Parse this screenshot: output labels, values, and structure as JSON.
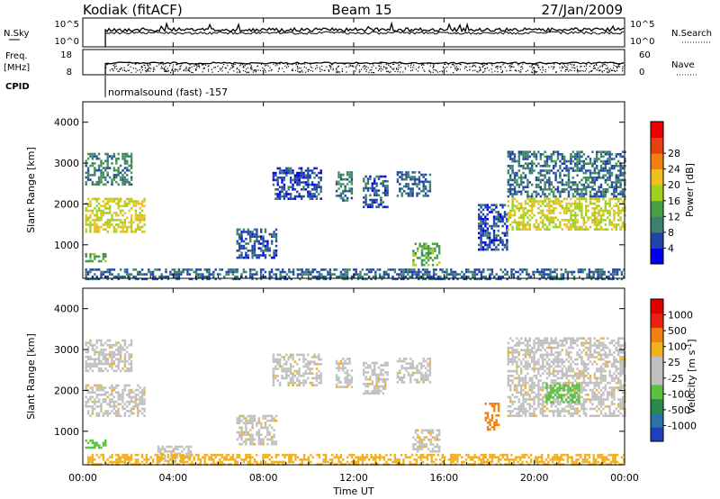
{
  "header": {
    "station": "Kodiak (fitACF)",
    "beam": "Beam 15",
    "date": "27/Jan/2009"
  },
  "nsky_panel": {
    "label_top": "N.Sky",
    "ticks": [
      "10^5",
      "10^0"
    ],
    "right_label": "N.Search",
    "right_ticks": [
      "10^5",
      "10^0"
    ]
  },
  "freq_panel": {
    "label_line1": "Freq.",
    "label_line2": "[MHz]",
    "ticks": [
      "18",
      "8"
    ],
    "right_label": "Nave",
    "right_ticks": [
      "60",
      "0"
    ]
  },
  "cpid": {
    "label": "CPID",
    "text": "normalsound (fast) -157"
  },
  "x_axis": {
    "label": "Time UT",
    "ticks": [
      "00:00",
      "04:00",
      "08:00",
      "12:00",
      "16:00",
      "20:00",
      "00:00"
    ]
  },
  "power_panel": {
    "ylabel": "Slant Range [km]",
    "yticks": [
      "1000",
      "2000",
      "3000",
      "4000"
    ],
    "colorbar_label": "Power [dB]",
    "colorbar_ticks": [
      "4",
      "8",
      "12",
      "16",
      "20",
      "24",
      "28"
    ],
    "colors": [
      "#0000ee",
      "#2244aa",
      "#3f7f6e",
      "#46a046",
      "#a0d020",
      "#f0c020",
      "#f08010",
      "#e84010",
      "#ee0000"
    ]
  },
  "velocity_panel": {
    "ylabel": "Slant Range [km]",
    "yticks": [
      "1000",
      "2000",
      "3000",
      "4000"
    ],
    "colorbar_label": "Velocity [m s",
    "colorbar_label_sup": "-1",
    "colorbar_label_end": "]",
    "colorbar_ticks": [
      "1000",
      "500",
      "100",
      "25",
      "-25",
      "-100",
      "-500",
      "-1000"
    ],
    "colors": [
      "#1f3fc0",
      "#2a73a8",
      "#2a8a4a",
      "#5cc040",
      "#c0c0c0",
      "#c0c0c0",
      "#f0b020",
      "#f08010",
      "#ee2010",
      "#e00000"
    ]
  },
  "chart_data": {
    "type": "heatmap",
    "x_range_hours": [
      0,
      24
    ],
    "y_range_km": [
      180,
      4500
    ],
    "power_regions": [
      {
        "t0": 0.1,
        "t1": 2.2,
        "r0": 2500,
        "r1": 3250,
        "p": 10
      },
      {
        "t0": 0.1,
        "t1": 2.7,
        "r0": 1300,
        "r1": 2150,
        "p": 20
      },
      {
        "t0": 0.1,
        "t1": 1.0,
        "r0": 600,
        "r1": 800,
        "p": 14
      },
      {
        "t0": 6.8,
        "t1": 8.6,
        "r0": 700,
        "r1": 1400,
        "p": 7
      },
      {
        "t0": 8.4,
        "t1": 10.6,
        "r0": 2100,
        "r1": 2900,
        "p": 6
      },
      {
        "t0": 11.2,
        "t1": 11.9,
        "r0": 2100,
        "r1": 2800,
        "p": 10
      },
      {
        "t0": 12.4,
        "t1": 13.5,
        "r0": 1950,
        "r1": 2700,
        "p": 7
      },
      {
        "t0": 13.9,
        "t1": 15.4,
        "r0": 2200,
        "r1": 2800,
        "p": 8
      },
      {
        "t0": 14.6,
        "t1": 15.8,
        "r0": 500,
        "r1": 1050,
        "p": 14
      },
      {
        "t0": 17.5,
        "t1": 18.8,
        "r0": 900,
        "r1": 2000,
        "p": 6
      },
      {
        "t0": 18.8,
        "t1": 24.0,
        "r0": 1350,
        "r1": 2150,
        "p": 20
      },
      {
        "t0": 18.8,
        "t1": 24.0,
        "r0": 2200,
        "r1": 3300,
        "p": 9
      },
      {
        "t0": 0.1,
        "t1": 24.0,
        "r0": 180,
        "r1": 420,
        "p": 8
      }
    ],
    "velocity_regions": [
      {
        "t0": 0.1,
        "t1": 2.2,
        "r0": 2500,
        "r1": 3250,
        "v": 0
      },
      {
        "t0": 0.1,
        "t1": 2.7,
        "r0": 1350,
        "r1": 2150,
        "v": 0
      },
      {
        "t0": 0.1,
        "t1": 1.0,
        "r0": 600,
        "r1": 800,
        "v": 150
      },
      {
        "t0": 3.3,
        "t1": 4.8,
        "r0": 300,
        "r1": 650,
        "v": 0
      },
      {
        "t0": 6.8,
        "t1": 8.6,
        "r0": 700,
        "r1": 1400,
        "v": 0
      },
      {
        "t0": 8.4,
        "t1": 10.6,
        "r0": 2100,
        "r1": 2900,
        "v": 0
      },
      {
        "t0": 11.2,
        "t1": 11.9,
        "r0": 2100,
        "r1": 2800,
        "v": 0
      },
      {
        "t0": 12.4,
        "t1": 13.5,
        "r0": 1950,
        "r1": 2700,
        "v": 0
      },
      {
        "t0": 13.9,
        "t1": 15.4,
        "r0": 2200,
        "r1": 2800,
        "v": 0
      },
      {
        "t0": 14.6,
        "t1": 15.8,
        "r0": 500,
        "r1": 1050,
        "v": 0
      },
      {
        "t0": 17.8,
        "t1": 18.4,
        "r0": 1050,
        "r1": 1700,
        "v": -200
      },
      {
        "t0": 18.8,
        "t1": 24.0,
        "r0": 1350,
        "r1": 2150,
        "v": 0
      },
      {
        "t0": 20.5,
        "t1": 22.0,
        "r0": 1700,
        "r1": 2200,
        "v": 200
      },
      {
        "t0": 18.8,
        "t1": 24.0,
        "r0": 2200,
        "r1": 3300,
        "v": 0
      },
      {
        "t0": 0.1,
        "t1": 24.0,
        "r0": 180,
        "r1": 450,
        "v": -60
      }
    ]
  }
}
